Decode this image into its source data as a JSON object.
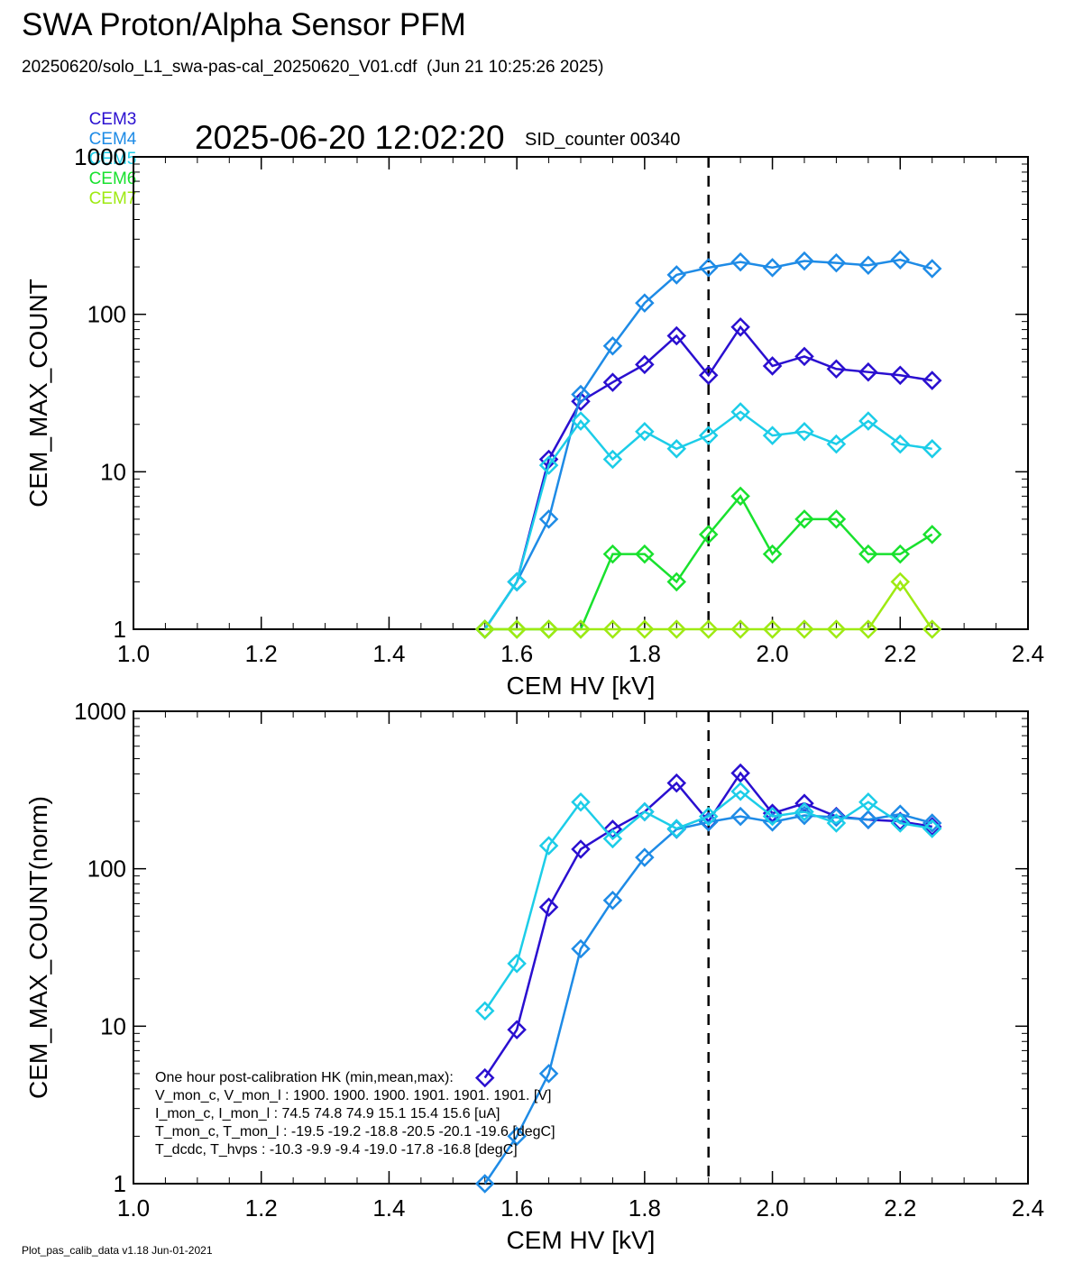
{
  "header": {
    "title": "SWA Proton/Alpha Sensor PFM",
    "subtitle": "20250620/solo_L1_swa-pas-cal_20250620_V01.cdf  (Jun 21 10:25:26 2025)",
    "timestamp": "2025-06-20 12:02:20",
    "sid_counter": "SID_counter 00340"
  },
  "legend": [
    {
      "name": "CEM3",
      "color": "#2a0fd0"
    },
    {
      "name": "CEM4",
      "color": "#1e8be6"
    },
    {
      "name": "CEM5",
      "color": "#1ccde8"
    },
    {
      "name": "CEM6",
      "color": "#19e12e"
    },
    {
      "name": "CEM7",
      "color": "#9eea12"
    }
  ],
  "footer": "Plot_pas_calib_data v1.18 Jun-01-2021",
  "hk_text": [
    "One hour post-calibration HK (min,mean,max):",
    "V_mon_c, V_mon_l :   1900.  1900.  1900.       1901.  1901.  1901.  [V]",
    "I_mon_c,  I_mon_l :     74.5   74.8   74.9         15.1   15.4   15.6  [uA]",
    "T_mon_c, T_mon_l :   -19.5  -19.2  -18.8        -20.5  -20.1  -19.6  [degC]",
    "T_dcdc,    T_hvps :    -10.3   -9.9   -9.4         -19.0  -17.8  -16.8  [degC]"
  ],
  "chart_data": [
    {
      "type": "line",
      "xlabel": "CEM HV [kV]",
      "ylabel": "CEM_MAX_COUNT",
      "xlim": [
        1.0,
        2.4
      ],
      "ylim": [
        1,
        1000
      ],
      "yscale": "log",
      "xticks": [
        "1.0",
        "1.2",
        "1.4",
        "1.6",
        "1.8",
        "2.0",
        "2.2",
        "2.4"
      ],
      "yticks": [
        "1",
        "10",
        "100",
        "1000"
      ],
      "vline_x": 1.9,
      "marker": "diamond",
      "series": [
        {
          "name": "CEM3",
          "x": [
            1.55,
            1.6,
            1.65,
            1.7,
            1.75,
            1.8,
            1.85,
            1.9,
            1.95,
            2.0,
            2.05,
            2.1,
            2.15,
            2.2,
            2.25
          ],
          "values": [
            1,
            2,
            12,
            28,
            37,
            48,
            73,
            41,
            83,
            47,
            54,
            45,
            43,
            41,
            38
          ]
        },
        {
          "name": "CEM4",
          "x": [
            1.55,
            1.6,
            1.65,
            1.7,
            1.75,
            1.8,
            1.85,
            1.9,
            1.95,
            2.0,
            2.05,
            2.1,
            2.15,
            2.2,
            2.25
          ],
          "values": [
            1,
            2,
            5,
            31,
            63,
            118,
            178,
            198,
            215,
            198,
            218,
            212,
            205,
            222,
            195
          ]
        },
        {
          "name": "CEM5",
          "x": [
            1.55,
            1.6,
            1.65,
            1.7,
            1.75,
            1.8,
            1.85,
            1.9,
            1.95,
            2.0,
            2.05,
            2.1,
            2.15,
            2.2,
            2.25
          ],
          "values": [
            1,
            2,
            11,
            21,
            12,
            18,
            14,
            17,
            24,
            17,
            18,
            15,
            21,
            15,
            14
          ]
        },
        {
          "name": "CEM6",
          "x": [
            1.55,
            1.6,
            1.65,
            1.7,
            1.75,
            1.8,
            1.85,
            1.9,
            1.95,
            2.0,
            2.05,
            2.1,
            2.15,
            2.2,
            2.25
          ],
          "values": [
            1,
            1,
            1,
            1,
            3,
            3,
            2,
            4,
            7,
            3,
            5,
            5,
            3,
            3,
            4
          ]
        },
        {
          "name": "CEM7",
          "x": [
            1.55,
            1.6,
            1.65,
            1.7,
            1.75,
            1.8,
            1.85,
            1.9,
            1.95,
            2.0,
            2.05,
            2.1,
            2.15,
            2.2,
            2.25
          ],
          "values": [
            1,
            1,
            1,
            1,
            1,
            1,
            1,
            1,
            1,
            1,
            1,
            1,
            1,
            2,
            1
          ]
        }
      ]
    },
    {
      "type": "line",
      "xlabel": "CEM HV [kV]",
      "ylabel": "CEM_MAX_COUNT(norm)",
      "xlim": [
        1.0,
        2.4
      ],
      "ylim": [
        1,
        1000
      ],
      "yscale": "log",
      "xticks": [
        "1.0",
        "1.2",
        "1.4",
        "1.6",
        "1.8",
        "2.0",
        "2.2",
        "2.4"
      ],
      "yticks": [
        "1",
        "10",
        "100",
        "1000"
      ],
      "vline_x": 1.9,
      "marker": "diamond",
      "series": [
        {
          "name": "CEM3",
          "x": [
            1.55,
            1.6,
            1.65,
            1.7,
            1.75,
            1.8,
            1.85,
            1.9,
            1.95,
            2.0,
            2.05,
            2.1,
            2.15,
            2.2,
            2.25
          ],
          "values": [
            4.7,
            9.5,
            57,
            133,
            178,
            230,
            350,
            200,
            405,
            225,
            260,
            215,
            205,
            200,
            185
          ]
        },
        {
          "name": "CEM4",
          "x": [
            1.55,
            1.6,
            1.65,
            1.7,
            1.75,
            1.8,
            1.85,
            1.9,
            1.95,
            2.0,
            2.05,
            2.1,
            2.15,
            2.2,
            2.25
          ],
          "values": [
            1,
            2,
            5,
            31,
            63,
            118,
            178,
            198,
            215,
            198,
            218,
            212,
            205,
            222,
            195
          ]
        },
        {
          "name": "CEM5",
          "x": [
            1.55,
            1.6,
            1.65,
            1.7,
            1.75,
            1.8,
            1.85,
            1.9,
            1.95,
            2.0,
            2.05,
            2.1,
            2.15,
            2.2,
            2.25
          ],
          "values": [
            12.5,
            25,
            140,
            265,
            155,
            230,
            180,
            215,
            310,
            215,
            230,
            195,
            265,
            195,
            180
          ]
        }
      ]
    }
  ]
}
